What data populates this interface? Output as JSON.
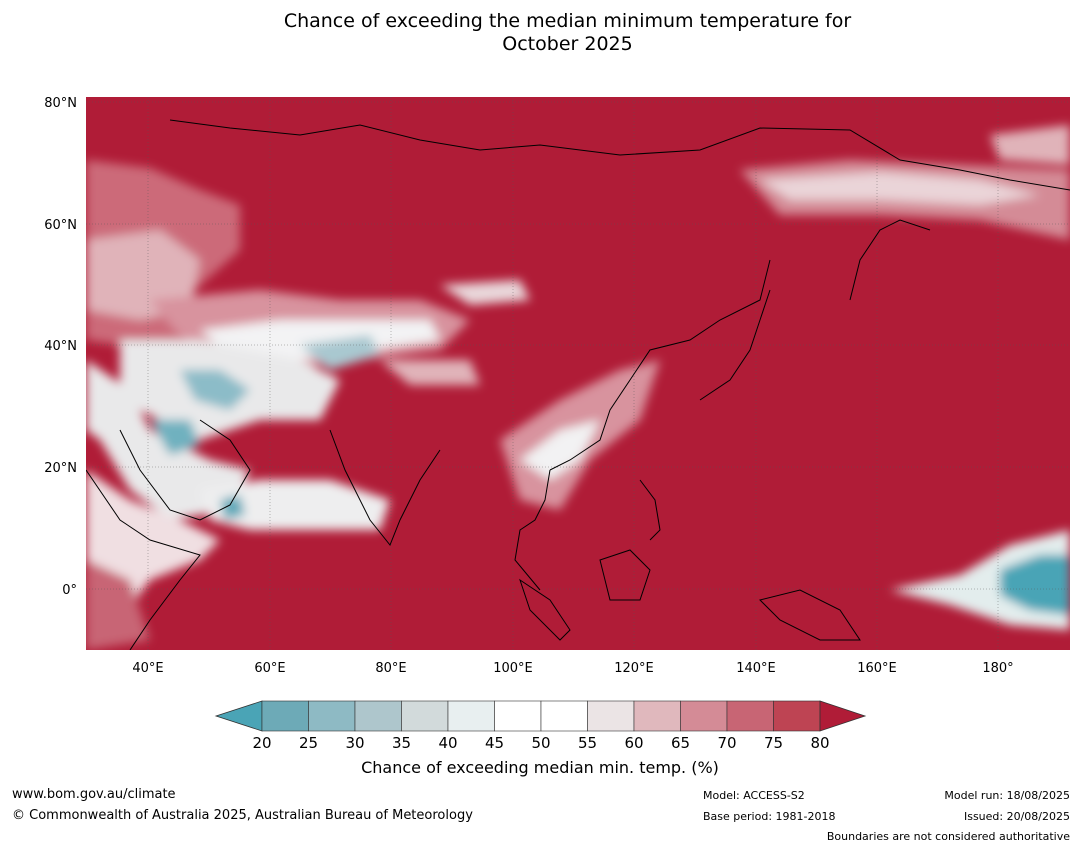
{
  "title": {
    "line1": "Chance of exceeding the median minimum temperature for",
    "line2": "October 2025"
  },
  "map": {
    "lat_ticks": [
      "80°N",
      "60°N",
      "40°N",
      "20°N",
      "0°"
    ],
    "lon_ticks": [
      "40°E",
      "60°E",
      "80°E",
      "100°E",
      "120°E",
      "140°E",
      "160°E",
      "180°"
    ],
    "background_color": "#b01c37",
    "coastline_color": "#000000",
    "border_color": "#808080"
  },
  "colorbar": {
    "ticks": [
      "20",
      "25",
      "30",
      "35",
      "40",
      "45",
      "50",
      "55",
      "60",
      "65",
      "70",
      "75",
      "80"
    ],
    "colors": [
      "#6daab7",
      "#8ebac4",
      "#aec6cc",
      "#d2dadb",
      "#e8eff0",
      "#ffffff",
      "#ffffff",
      "#ebe4e5",
      "#e0b8bd",
      "#d48b96",
      "#c86574",
      "#be4453"
    ],
    "low_extend_color": "#4aa4b6",
    "high_extend_color": "#b01c37",
    "label": "Chance of exceeding median min. temp. (%)"
  },
  "footer": {
    "website": "www.bom.gov.au/climate",
    "copyright": "© Commonwealth of Australia 2025, Australian Bureau of Meteorology",
    "model": "Model: ACCESS-S2",
    "base_period": "Base period: 1981-2018",
    "model_run": "Model run: 18/08/2025",
    "issued": "Issued: 20/08/2025",
    "disclaimer": "Boundaries are not considered authoritative"
  }
}
